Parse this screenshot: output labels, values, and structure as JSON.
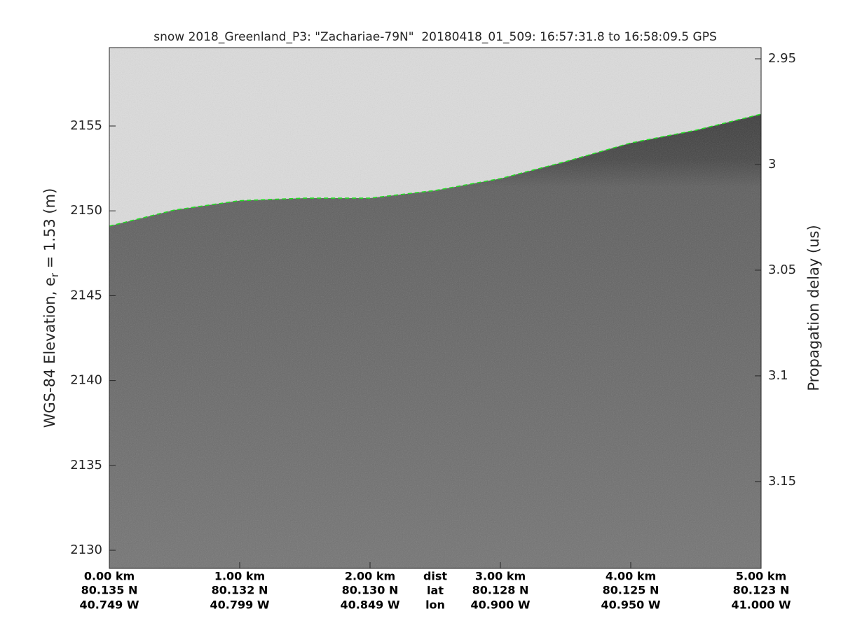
{
  "chart_data": {
    "type": "echogram",
    "title": "snow 2018_Greenland_P3: \"Zachariae-79N\"  20180418_01_509: 16:57:31.8 to 16:58:09.5 GPS",
    "ylabel": {
      "text": "WGS-84 Elevation, e",
      "subscript": "r",
      "suffix": " = 1.53 (m)"
    },
    "y2label": "Propagation delay (us)",
    "xlim": [
      0,
      5
    ],
    "xticks": [
      {
        "value": 0,
        "label": "0.00 km"
      },
      {
        "value": 1,
        "label": "1.00 km"
      },
      {
        "value": 2,
        "label": "2.00 km"
      },
      {
        "value": 3,
        "label": "3.00 km"
      },
      {
        "value": 4,
        "label": "4.00 km"
      },
      {
        "value": 5,
        "label": "5.00 km"
      }
    ],
    "xtick_lat": [
      "80.135 N",
      "80.132 N",
      "80.130 N",
      "80.128 N",
      "80.125 N",
      "80.123 N"
    ],
    "xtick_lon": [
      "40.749 W",
      "40.799 W",
      "40.849 W",
      "40.900 W",
      "40.950 W",
      "41.000 W"
    ],
    "xtick_row_labels": [
      "dist",
      "lat",
      "lon"
    ],
    "ylim": [
      2128.93,
      2159.62
    ],
    "yticks": [
      2130,
      2135,
      2140,
      2145,
      2150,
      2155
    ],
    "y2lim": [
      2.9447,
      3.1911
    ],
    "y2_reversed": true,
    "y2ticks": [
      2.95,
      3,
      3.05,
      3.1,
      3.15
    ],
    "x": [
      0,
      0.5,
      1,
      1.5,
      2,
      2.5,
      3,
      3.5,
      4,
      4.5,
      5
    ],
    "series": [
      {
        "color": "#22dd22",
        "values": [
          2149.1,
          2150.05,
          2150.6,
          2150.75,
          2150.75,
          2151.2,
          2151.9,
          2152.9,
          2154.0,
          2154.75,
          2155.7
        ]
      }
    ]
  }
}
